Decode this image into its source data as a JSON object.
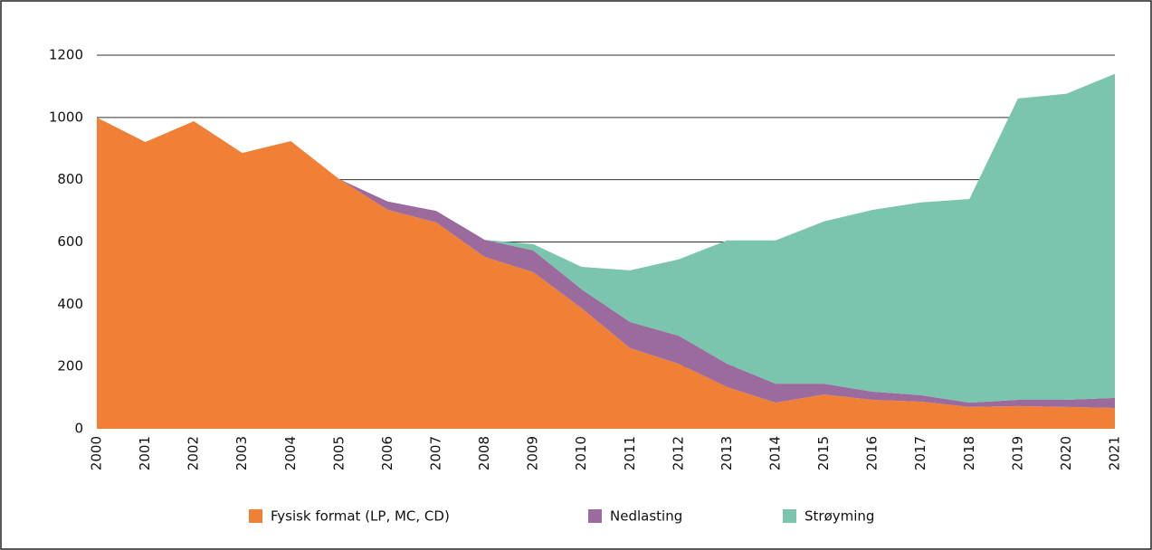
{
  "chart_data": {
    "type": "stacked_area",
    "categories": [
      "2000",
      "2001",
      "2002",
      "2003",
      "2004",
      "2005",
      "2006",
      "2007",
      "2008",
      "2009",
      "2010",
      "2011",
      "2012",
      "2013",
      "2014",
      "2015",
      "2016",
      "2017",
      "2018",
      "2019",
      "2020",
      "2021"
    ],
    "series": [
      {
        "name": "Fysisk format (LP, MC, CD)",
        "color": "#f08036",
        "values": [
          1000,
          921,
          988,
          886,
          924,
          802,
          703,
          663,
          552,
          503,
          387,
          259,
          209,
          134,
          84,
          110,
          93,
          87,
          70,
          73,
          70,
          67
        ]
      },
      {
        "name": "Nedlasting",
        "color": "#9b6b9e",
        "values": [
          0,
          0,
          0,
          0,
          0,
          0,
          27,
          37,
          55,
          70,
          61,
          84,
          90,
          75,
          61,
          35,
          26,
          21,
          14,
          20,
          23,
          32
        ]
      },
      {
        "name": "Strøyming",
        "color": "#7bc4ad",
        "values": [
          0,
          0,
          0,
          0,
          0,
          0,
          0,
          0,
          0,
          20,
          72,
          166,
          245,
          396,
          460,
          521,
          584,
          619,
          654,
          968,
          983,
          1041
        ]
      }
    ],
    "ylim": [
      0,
      1200
    ],
    "yticks": [
      0,
      200,
      400,
      600,
      800,
      1000,
      1200
    ],
    "grid": true,
    "legend": "bottom"
  }
}
